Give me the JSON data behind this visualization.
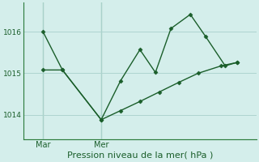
{
  "background_color": "#d4eeeb",
  "grid_color": "#aed4d0",
  "line_color": "#1a5e2a",
  "spine_color": "#2a7a3a",
  "xlim": [
    0,
    12
  ],
  "ylim": [
    1013.4,
    1016.7
  ],
  "yticks": [
    1014,
    1015,
    1016
  ],
  "ytick_fontsize": 6.5,
  "xtick_positions": [
    1,
    4
  ],
  "xtick_labels": [
    "Mar",
    "Mer"
  ],
  "xtick_fontsize": 7,
  "xlabel": "Pression niveau de la mer( hPa )",
  "xlabel_fontsize": 8,
  "line1_x": [
    1.0,
    2.0,
    4.0,
    5.0,
    6.0,
    6.8,
    7.6,
    8.6,
    9.4,
    10.4,
    11.0
  ],
  "line1_y": [
    1016.0,
    1015.08,
    1013.88,
    1014.82,
    1015.57,
    1015.02,
    1016.08,
    1016.42,
    1015.88,
    1015.18,
    1015.26
  ],
  "line2_x": [
    1.0,
    2.0,
    4.0,
    5.0,
    6.0,
    7.0,
    8.0,
    9.0,
    10.2,
    11.0
  ],
  "line2_y": [
    1015.08,
    1015.08,
    1013.88,
    1014.1,
    1014.32,
    1014.55,
    1014.78,
    1015.0,
    1015.18,
    1015.26
  ],
  "vline_x": [
    1.0,
    4.0
  ],
  "marker_size": 2.5,
  "linewidth": 1.0
}
